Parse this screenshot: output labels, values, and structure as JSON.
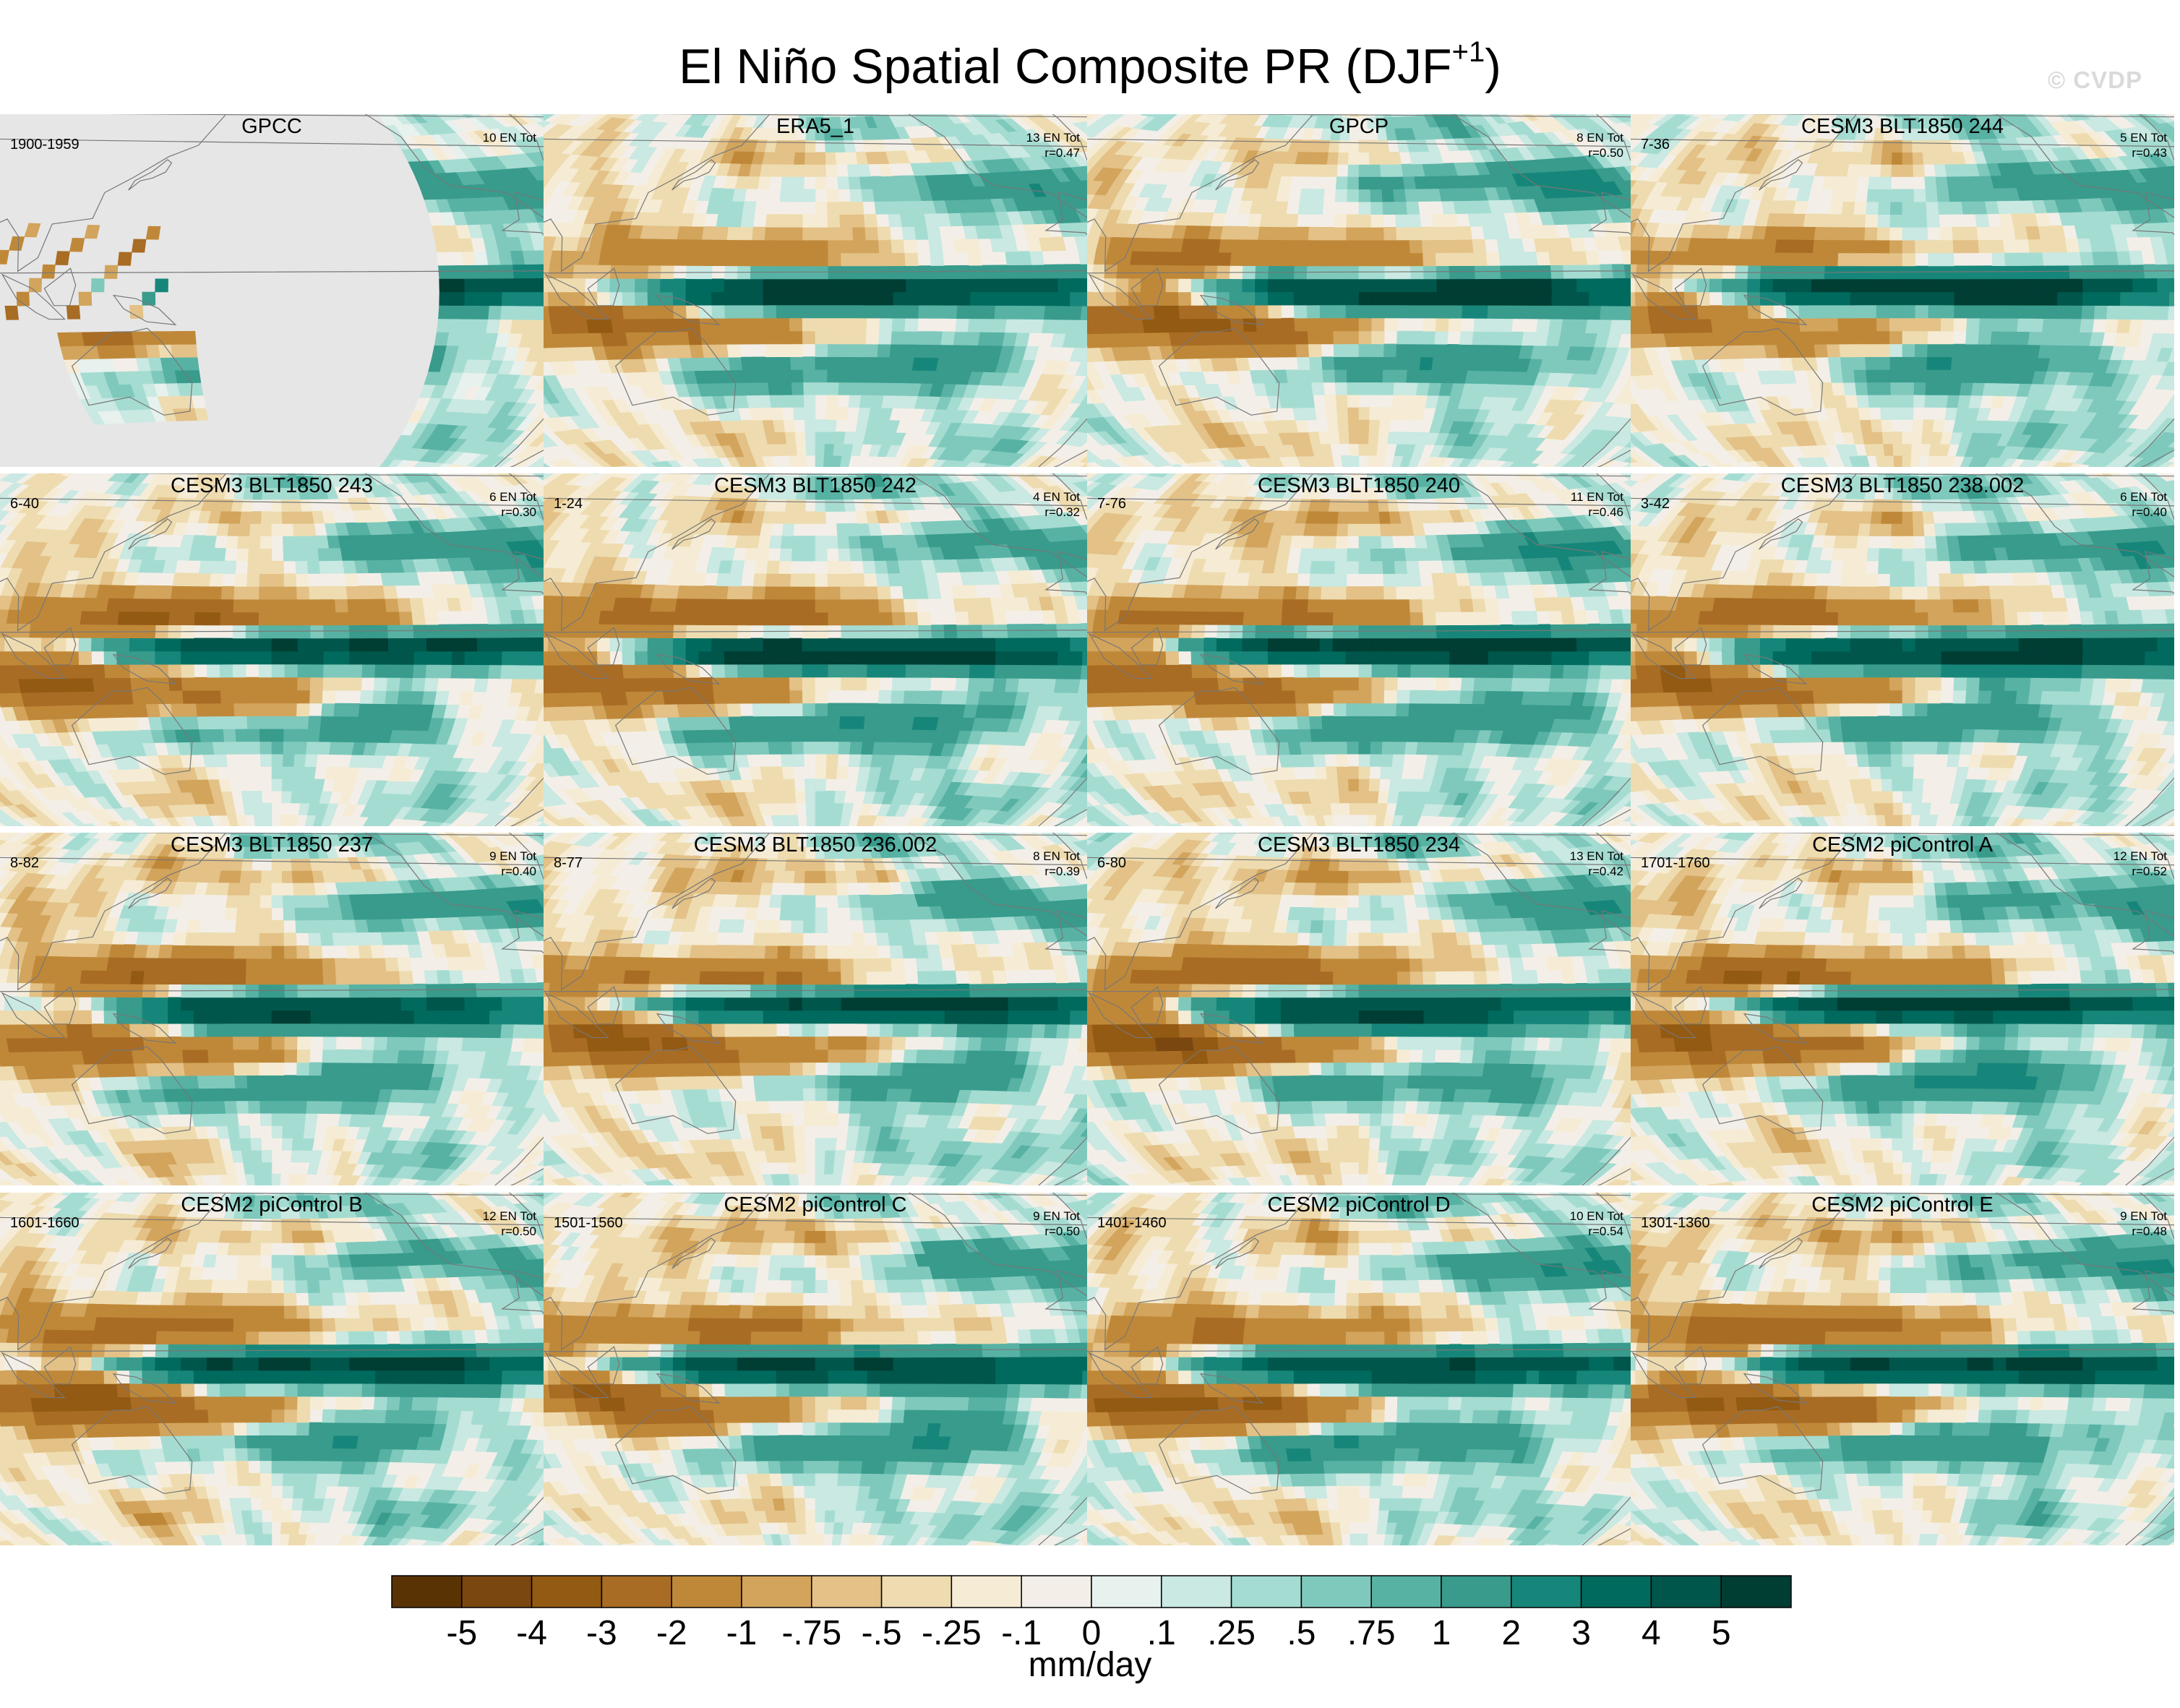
{
  "figure": {
    "title_main": "El Niño Spatial Composite PR (DJF",
    "title_superscript": "+1",
    "title_end": ")",
    "watermark": "© CVDP"
  },
  "chart_data": {
    "type": "heatmap",
    "title": "El Niño Spatial Composite PR (DJF+1)",
    "units": "mm/day",
    "colorbar": {
      "tick_labels": [
        "-5",
        "-4",
        "-3",
        "-2",
        "-1",
        "-.75",
        "-.5",
        "-.25",
        "-.1",
        "0",
        ".1",
        ".25",
        ".5",
        ".75",
        "1",
        "2",
        "3",
        "4",
        "5"
      ],
      "levels": [
        -5,
        -4,
        -3,
        -2,
        -1,
        -0.75,
        -0.5,
        -0.25,
        -0.1,
        0,
        0.1,
        0.25,
        0.5,
        0.75,
        1,
        2,
        3,
        4,
        5
      ],
      "colors": [
        "#5a3305",
        "#7a4710",
        "#935a13",
        "#a86c24",
        "#bf8838",
        "#d2a45c",
        "#e3c187",
        "#eedcb0",
        "#f6ecd5",
        "#f3efe8",
        "#e7f1ee",
        "#c9e9e2",
        "#a5dcd2",
        "#7fc9bc",
        "#57b2a4",
        "#389b8c",
        "#17867a",
        "#006a5e",
        "#00564b",
        "#003d33"
      ]
    },
    "panels": [
      {
        "title": "GPCC",
        "years": "1900-1959",
        "en_tot": "10 EN Tot",
        "r": "",
        "coverage": "land"
      },
      {
        "title": "ERA5_1",
        "years": "",
        "en_tot": "13 EN Tot",
        "r": "r=0.47",
        "coverage": "global"
      },
      {
        "title": "GPCP",
        "years": "",
        "en_tot": "8 EN Tot",
        "r": "r=0.50",
        "coverage": "global"
      },
      {
        "title": "CESM3 BLT1850 244",
        "years": "7-36",
        "en_tot": "5 EN Tot",
        "r": "r=0.43",
        "coverage": "global"
      },
      {
        "title": "CESM3 BLT1850 243",
        "years": "6-40",
        "en_tot": "6 EN Tot",
        "r": "r=0.30",
        "coverage": "global"
      },
      {
        "title": "CESM3 BLT1850 242",
        "years": "1-24",
        "en_tot": "4 EN Tot",
        "r": "r=0.32",
        "coverage": "global"
      },
      {
        "title": "CESM3 BLT1850 240",
        "years": "7-76",
        "en_tot": "11 EN Tot",
        "r": "r=0.46",
        "coverage": "global"
      },
      {
        "title": "CESM3 BLT1850 238.002",
        "years": "3-42",
        "en_tot": "6 EN Tot",
        "r": "r=0.40",
        "coverage": "global"
      },
      {
        "title": "CESM3 BLT1850 237",
        "years": "8-82",
        "en_tot": "9 EN Tot",
        "r": "r=0.40",
        "coverage": "global"
      },
      {
        "title": "CESM3 BLT1850 236.002",
        "years": "8-77",
        "en_tot": "8 EN Tot",
        "r": "r=0.39",
        "coverage": "global"
      },
      {
        "title": "CESM3 BLT1850 234",
        "years": "6-80",
        "en_tot": "13 EN Tot",
        "r": "r=0.42",
        "coverage": "global"
      },
      {
        "title": "CESM2 piControl A",
        "years": "1701-1760",
        "en_tot": "12 EN Tot",
        "r": "r=0.52",
        "coverage": "global"
      },
      {
        "title": "CESM2 piControl B",
        "years": "1601-1660",
        "en_tot": "12 EN Tot",
        "r": "r=0.50",
        "coverage": "global"
      },
      {
        "title": "CESM2 piControl C",
        "years": "1501-1560",
        "en_tot": "9 EN Tot",
        "r": "r=0.50",
        "coverage": "global"
      },
      {
        "title": "CESM2 piControl D",
        "years": "1401-1460",
        "en_tot": "10 EN Tot",
        "r": "r=0.54",
        "coverage": "global"
      },
      {
        "title": "CESM2 piControl E",
        "years": "1301-1360",
        "en_tot": "9 EN Tot",
        "r": "r=0.48",
        "coverage": "global"
      }
    ]
  }
}
